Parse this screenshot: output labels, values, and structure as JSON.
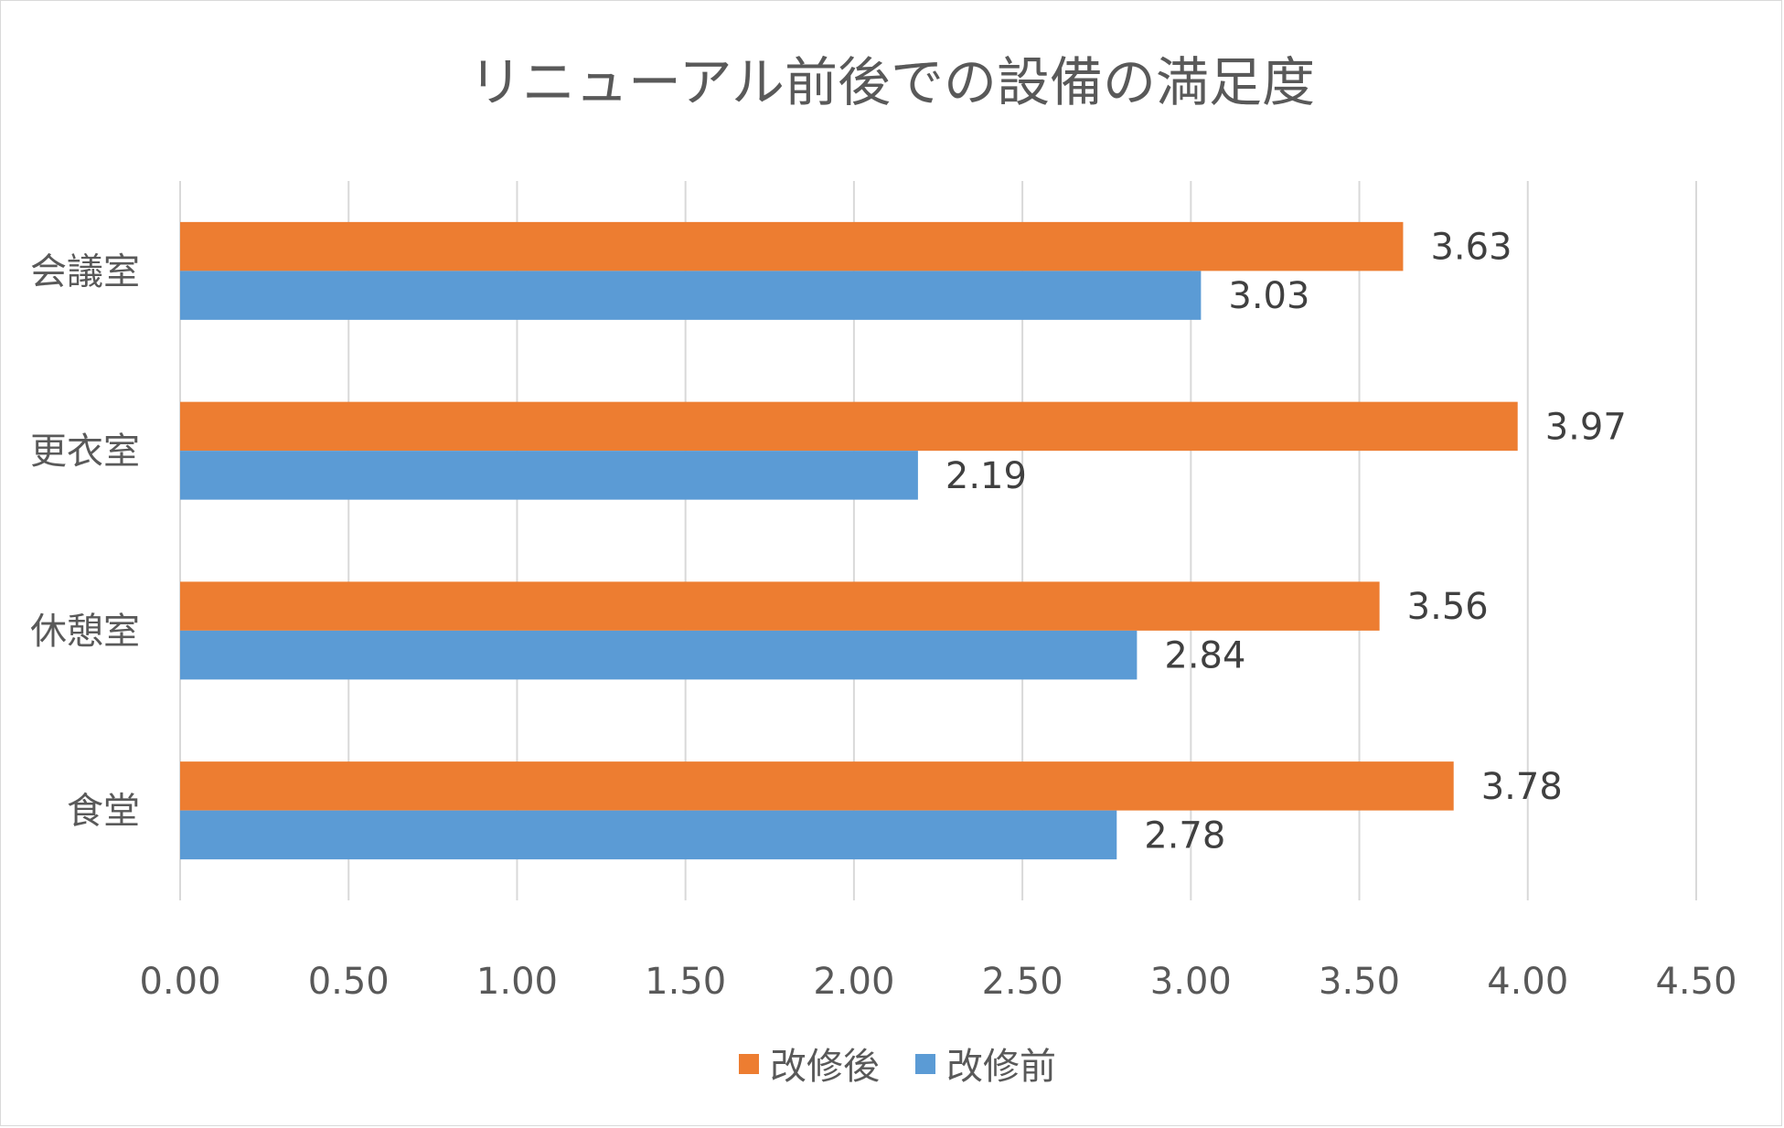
{
  "chart_data": {
    "type": "bar",
    "orientation": "horizontal",
    "title": "リニューアル前後での設備の満足度",
    "xlabel": "",
    "ylabel": "",
    "categories": [
      "会議室",
      "更衣室",
      "休憩室",
      "食堂"
    ],
    "series": [
      {
        "name": "改修後",
        "values": [
          3.63,
          3.97,
          3.56,
          3.78
        ],
        "color": "#ED7D31"
      },
      {
        "name": "改修前",
        "values": [
          3.03,
          2.19,
          2.84,
          2.78
        ],
        "color": "#5B9BD5"
      }
    ],
    "x_ticks": [
      "0.00",
      "0.50",
      "1.00",
      "1.50",
      "2.00",
      "2.50",
      "3.00",
      "3.50",
      "4.00",
      "4.50"
    ],
    "xlim": [
      0,
      4.5
    ],
    "grid": true,
    "gridline_color": "#d9d9d9",
    "legend_position": "bottom",
    "data_labels": true
  }
}
